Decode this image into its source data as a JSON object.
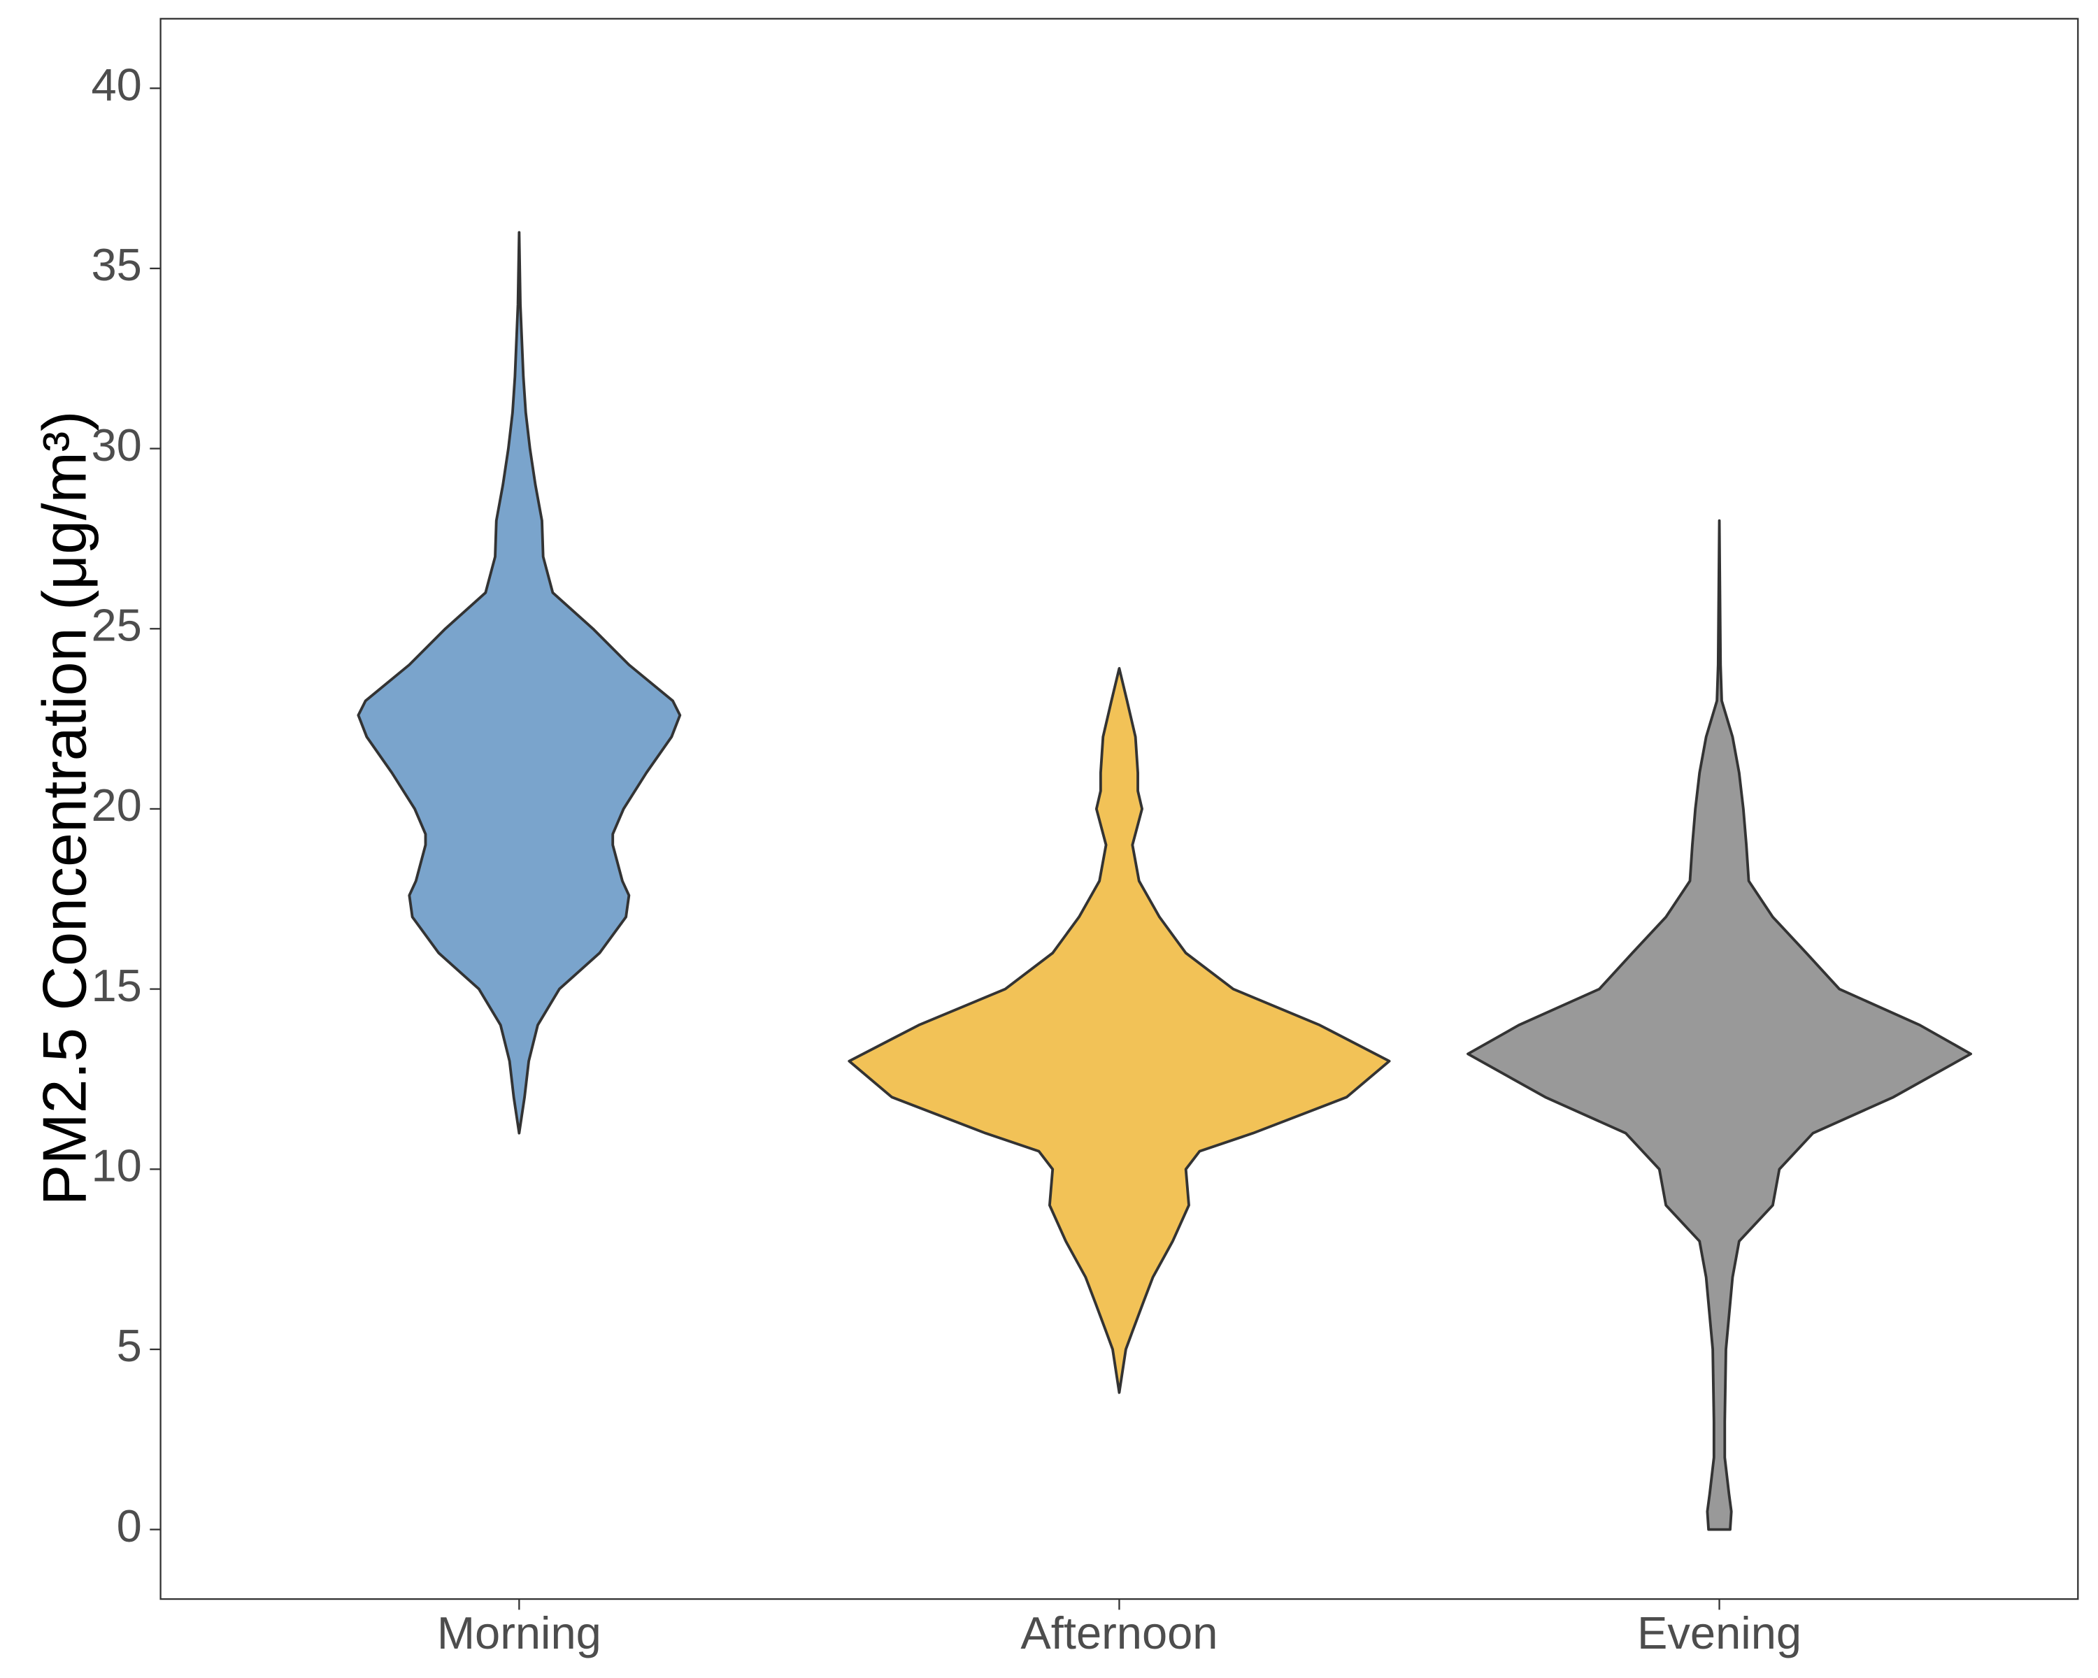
{
  "chart_data": {
    "type": "violin",
    "y_label": "PM2.5 Concentration (μg/m³)",
    "categories": [
      "Morning",
      "Afternoon",
      "Evening"
    ],
    "ylim": [
      -1.93,
      41.93
    ],
    "yticks": [
      0,
      5,
      10,
      15,
      20,
      25,
      30,
      35,
      40
    ],
    "grid": false,
    "series": [
      {
        "color": "#7aa4cc",
        "y": [
          11,
          12,
          13,
          14,
          15,
          16,
          17,
          17.6,
          18,
          19,
          19.3,
          20,
          21,
          22,
          22.6,
          23,
          24,
          25,
          26,
          27,
          28,
          29,
          30,
          31,
          32,
          34,
          36
        ],
        "density": [
          0,
          0.009,
          0.016,
          0.031,
          0.067,
          0.134,
          0.178,
          0.183,
          0.172,
          0.156,
          0.156,
          0.174,
          0.212,
          0.254,
          0.268,
          0.256,
          0.183,
          0.123,
          0.056,
          0.04,
          0.038,
          0.027,
          0.018,
          0.011,
          0.007,
          0.002,
          0
        ]
      },
      {
        "color": "#f2c257",
        "y": [
          3.8,
          5,
          5.5,
          6.3,
          7,
          8,
          9,
          10,
          10.5,
          11,
          12,
          13,
          14,
          15,
          16,
          17,
          18,
          19,
          20,
          20.5,
          21,
          22,
          23,
          23.9
        ],
        "density": [
          0,
          0.011,
          0.022,
          0.04,
          0.056,
          0.089,
          0.116,
          0.111,
          0.134,
          0.223,
          0.379,
          0.45,
          0.334,
          0.19,
          0.111,
          0.067,
          0.033,
          0.022,
          0.038,
          0.031,
          0.031,
          0.027,
          0.013,
          0
        ]
      },
      {
        "color": "#999999",
        "y": [
          0,
          0.5,
          1,
          2,
          3,
          5,
          7,
          8,
          9,
          10,
          11,
          12,
          13.2,
          14,
          15,
          16,
          17,
          18,
          19,
          20,
          21,
          22,
          23,
          24,
          28
        ],
        "density": [
          0.018,
          0.02,
          0.016,
          0.009,
          0.009,
          0.011,
          0.022,
          0.033,
          0.089,
          0.1,
          0.156,
          0.29,
          0.419,
          0.334,
          0.2,
          0.145,
          0.089,
          0.049,
          0.045,
          0.04,
          0.033,
          0.022,
          0.004,
          0.002,
          0
        ]
      }
    ]
  }
}
